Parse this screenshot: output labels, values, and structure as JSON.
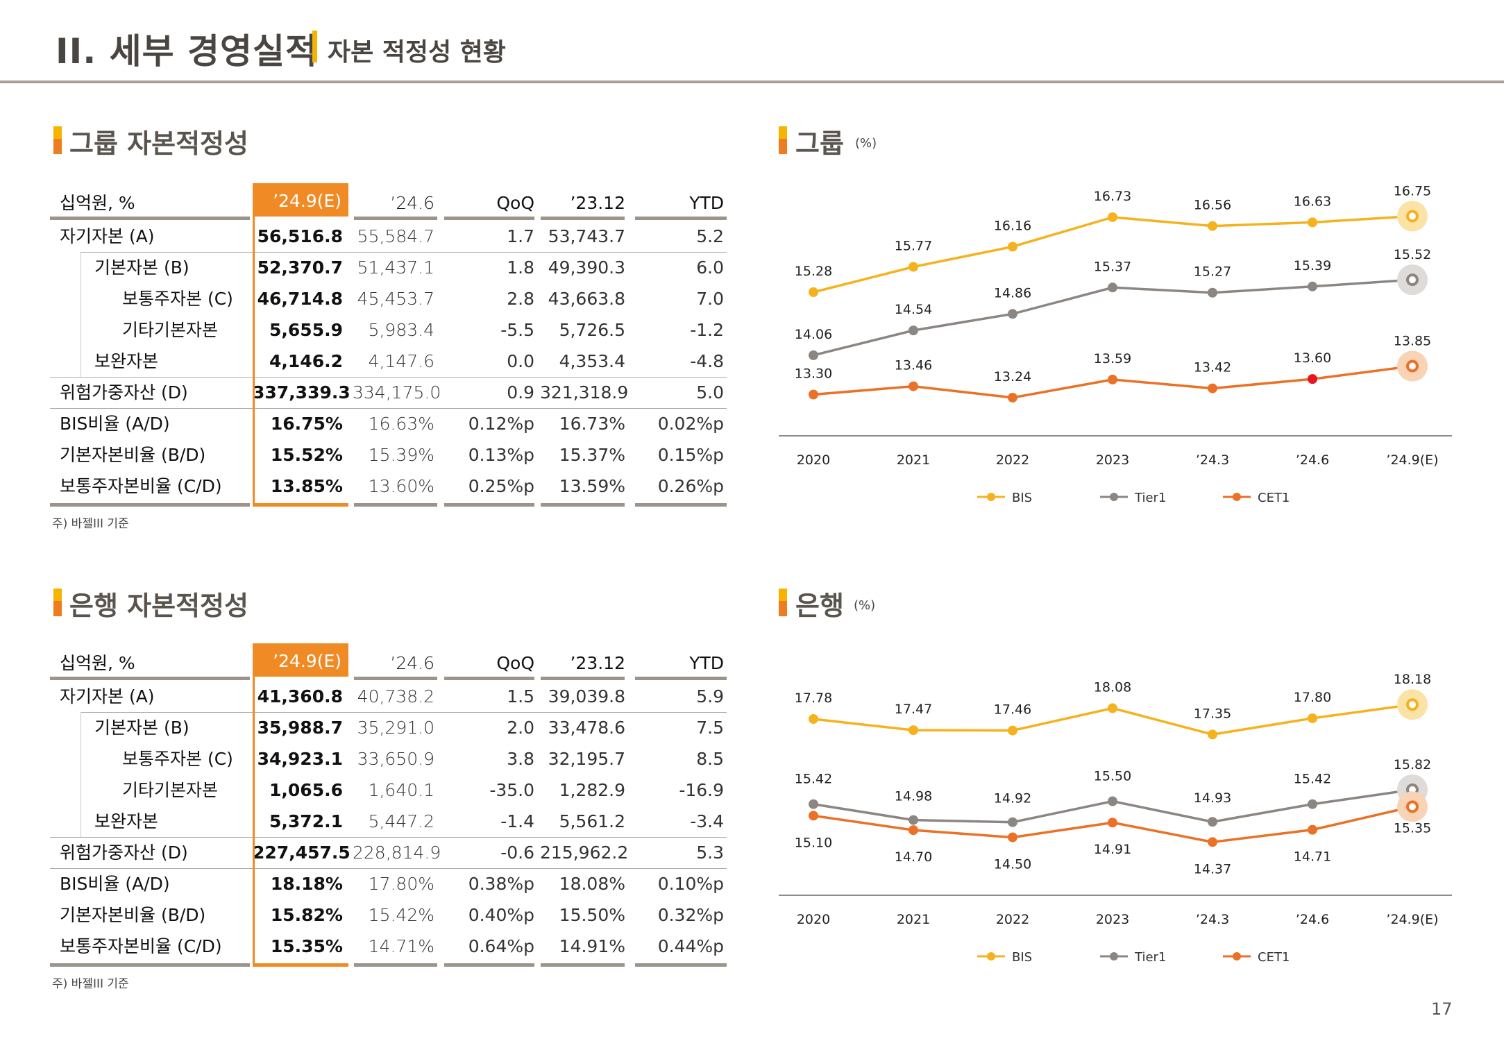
{
  "header": {
    "title": "II. 세부 경영실적",
    "subtitle": "자본 적정성 현황"
  },
  "group_table": {
    "section_title": "그룹 자본적정성",
    "columns": [
      "십억원, %",
      "’24.9(E)",
      "’24.6",
      "QoQ",
      "’23.12",
      "YTD"
    ],
    "rows": [
      {
        "label": "자기자본 (A)",
        "values": [
          "56,516.8",
          "55,584.7",
          "1.7",
          "53,743.7",
          "5.2"
        ]
      },
      {
        "label": "기본자본 (B)",
        "values": [
          "52,370.7",
          "51,437.1",
          "1.8",
          "49,390.3",
          "6.0"
        ]
      },
      {
        "label": "보통주자본 (C)",
        "values": [
          "46,714.8",
          "45,453.7",
          "2.8",
          "43,663.8",
          "7.0"
        ]
      },
      {
        "label": "기타기본자본",
        "values": [
          "5,655.9",
          "5,983.4",
          "-5.5",
          "5,726.5",
          "-1.2"
        ]
      },
      {
        "label": "보완자본",
        "values": [
          "4,146.2",
          "4,147.6",
          "0.0",
          "4,353.4",
          "-4.8"
        ]
      },
      {
        "label": "위험가중자산 (D)",
        "values": [
          "337,339.3",
          "334,175.0",
          "0.9",
          "321,318.9",
          "5.0"
        ]
      },
      {
        "label": "BIS비율 (A/D)",
        "values": [
          "16.75%",
          "16.63%",
          "0.12%p",
          "16.73%",
          "0.02%p"
        ]
      },
      {
        "label": "기본자본비율 (B/D)",
        "values": [
          "15.52%",
          "15.39%",
          "0.13%p",
          "15.37%",
          "0.15%p"
        ]
      },
      {
        "label": "보통주자본비율 (C/D)",
        "values": [
          "13.85%",
          "13.60%",
          "0.25%p",
          "13.59%",
          "0.26%p"
        ]
      }
    ],
    "footnote": "주) 바젤III 기준"
  },
  "bank_table": {
    "section_title": "은행 자본적정성",
    "columns": [
      "십억원, %",
      "’24.9(E)",
      "’24.6",
      "QoQ",
      "’23.12",
      "YTD"
    ],
    "rows": [
      {
        "label": "자기자본 (A)",
        "values": [
          "41,360.8",
          "40,738.2",
          "1.5",
          "39,039.8",
          "5.9"
        ]
      },
      {
        "label": "기본자본 (B)",
        "values": [
          "35,988.7",
          "35,291.0",
          "2.0",
          "33,478.6",
          "7.5"
        ]
      },
      {
        "label": "보통주자본 (C)",
        "values": [
          "34,923.1",
          "33,650.9",
          "3.8",
          "32,195.7",
          "8.5"
        ]
      },
      {
        "label": "기타기본자본",
        "values": [
          "1,065.6",
          "1,640.1",
          "-35.0",
          "1,282.9",
          "-16.9"
        ]
      },
      {
        "label": "보완자본",
        "values": [
          "5,372.1",
          "5,447.2",
          "-1.4",
          "5,561.2",
          "-3.4"
        ]
      },
      {
        "label": "위험가중자산 (D)",
        "values": [
          "227,457.5",
          "228,814.9",
          "-0.6",
          "215,962.2",
          "5.3"
        ]
      },
      {
        "label": "BIS비율 (A/D)",
        "values": [
          "18.18%",
          "17.80%",
          "0.38%p",
          "18.08%",
          "0.10%p"
        ]
      },
      {
        "label": "기본자본비율 (B/D)",
        "values": [
          "15.82%",
          "15.42%",
          "0.40%p",
          "15.50%",
          "0.32%p"
        ]
      },
      {
        "label": "보통주자본비율 (C/D)",
        "values": [
          "15.35%",
          "14.71%",
          "0.64%p",
          "14.91%",
          "0.44%p"
        ]
      }
    ],
    "footnote": "주) 바젤III 기준"
  },
  "colors": {
    "BIS": "#f5b21e",
    "Tier1": "#8c8682",
    "CET1": "#ea7126",
    "highlight_red": "#e8141e",
    "accent_orange": "#f08a24",
    "accent_yellow": "#f5b400"
  },
  "chart_data": [
    {
      "type": "line",
      "title": "그룹",
      "unit": "(%)",
      "categories": [
        "2020",
        "2021",
        "2022",
        "2023",
        "’24.3",
        "’24.6",
        "’24.9(E)"
      ],
      "series": [
        {
          "name": "BIS",
          "values": [
            15.28,
            15.77,
            16.16,
            16.73,
            16.56,
            16.63,
            16.75
          ]
        },
        {
          "name": "Tier1",
          "values": [
            14.06,
            14.54,
            14.86,
            15.37,
            15.27,
            15.39,
            15.52
          ]
        },
        {
          "name": "CET1",
          "values": [
            13.3,
            13.46,
            13.24,
            13.59,
            13.42,
            13.6,
            13.85
          ]
        }
      ],
      "highlighted_point": {
        "series": "CET1",
        "category": "’24.6"
      },
      "estimate_point": "’24.9(E)",
      "legend": [
        "BIS",
        "Tier1",
        "CET1"
      ],
      "legend_position": "bottom",
      "grid": false,
      "y_axis_visible": false
    },
    {
      "type": "line",
      "title": "은행",
      "unit": "(%)",
      "categories": [
        "2020",
        "2021",
        "2022",
        "2023",
        "’24.3",
        "’24.6",
        "’24.9(E)"
      ],
      "series": [
        {
          "name": "BIS",
          "values": [
            17.78,
            17.47,
            17.46,
            18.08,
            17.35,
            17.8,
            18.18
          ]
        },
        {
          "name": "Tier1",
          "values": [
            15.42,
            14.98,
            14.92,
            15.5,
            14.93,
            15.42,
            15.82
          ]
        },
        {
          "name": "CET1",
          "values": [
            15.1,
            14.7,
            14.5,
            14.91,
            14.37,
            14.71,
            15.35
          ]
        }
      ],
      "estimate_point": "’24.9(E)",
      "legend": [
        "BIS",
        "Tier1",
        "CET1"
      ],
      "legend_position": "bottom",
      "grid": false,
      "y_axis_visible": false
    }
  ],
  "page_number": "17"
}
